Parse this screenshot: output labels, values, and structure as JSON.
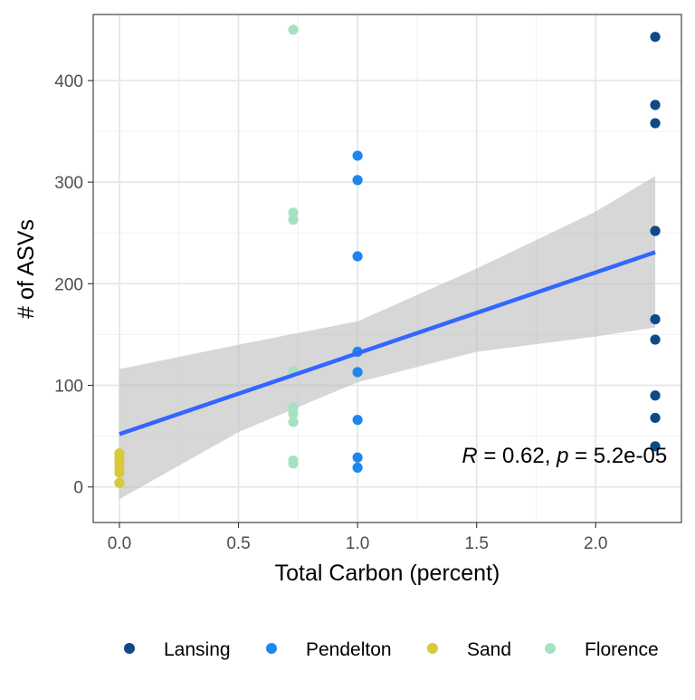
{
  "chart_data": {
    "type": "scatter",
    "xlabel": "Total Carbon (percent)",
    "ylabel": "# of ASVs",
    "xlim": [
      -0.11,
      2.36
    ],
    "ylim": [
      -35,
      465
    ],
    "x_ticks": [
      0.0,
      0.5,
      1.0,
      1.5,
      2.0
    ],
    "x_tick_labels": [
      "0.0",
      "0.5",
      "1.0",
      "1.5",
      "2.0"
    ],
    "y_ticks": [
      0,
      100,
      200,
      300,
      400
    ],
    "y_tick_labels": [
      "0",
      "100",
      "200",
      "300",
      "400"
    ],
    "grid": true,
    "legend_position": "bottom",
    "series": [
      {
        "name": "Lansing",
        "color": "#0d4a87",
        "points": [
          [
            2.25,
            443
          ],
          [
            2.25,
            376
          ],
          [
            2.25,
            358
          ],
          [
            2.25,
            252
          ],
          [
            2.25,
            165
          ],
          [
            2.25,
            145
          ],
          [
            2.25,
            90
          ],
          [
            2.25,
            68
          ],
          [
            2.25,
            40
          ]
        ]
      },
      {
        "name": "Pendelton",
        "color": "#1f86f0",
        "points": [
          [
            1.0,
            326
          ],
          [
            1.0,
            302
          ],
          [
            1.0,
            227
          ],
          [
            1.0,
            133
          ],
          [
            1.0,
            113
          ],
          [
            1.0,
            66
          ],
          [
            1.0,
            29
          ],
          [
            1.0,
            19
          ]
        ]
      },
      {
        "name": "Sand",
        "color": "#d8c93a",
        "points": [
          [
            0.0,
            33
          ],
          [
            0.0,
            28
          ],
          [
            0.0,
            24
          ],
          [
            0.0,
            19
          ],
          [
            0.0,
            14
          ],
          [
            0.0,
            4
          ]
        ]
      },
      {
        "name": "Florence",
        "color": "#a4e2c2",
        "points": [
          [
            0.73,
            450
          ],
          [
            0.73,
            270
          ],
          [
            0.73,
            263
          ],
          [
            0.73,
            114
          ],
          [
            0.73,
            78
          ],
          [
            0.73,
            72
          ],
          [
            0.73,
            64
          ],
          [
            0.73,
            26
          ],
          [
            0.73,
            23
          ]
        ]
      }
    ],
    "regression": {
      "color": "#3366ff",
      "band_color": "#bdbdbd",
      "start": [
        0.0,
        52
      ],
      "end": [
        2.25,
        231
      ],
      "band": [
        {
          "x": 0.0,
          "lo": -12,
          "hi": 116
        },
        {
          "x": 0.5,
          "lo": 54,
          "hi": 140
        },
        {
          "x": 1.0,
          "lo": 103,
          "hi": 163
        },
        {
          "x": 1.5,
          "lo": 133,
          "hi": 215
        },
        {
          "x": 2.0,
          "lo": 148,
          "hi": 271
        },
        {
          "x": 2.25,
          "lo": 157,
          "hi": 306
        }
      ]
    },
    "annotation": {
      "r_symbol": "R",
      "r_text": " = 0.62, ",
      "p_symbol": "p",
      "p_text": " = 5.2e-05",
      "x": 2.3,
      "y": 31
    }
  }
}
